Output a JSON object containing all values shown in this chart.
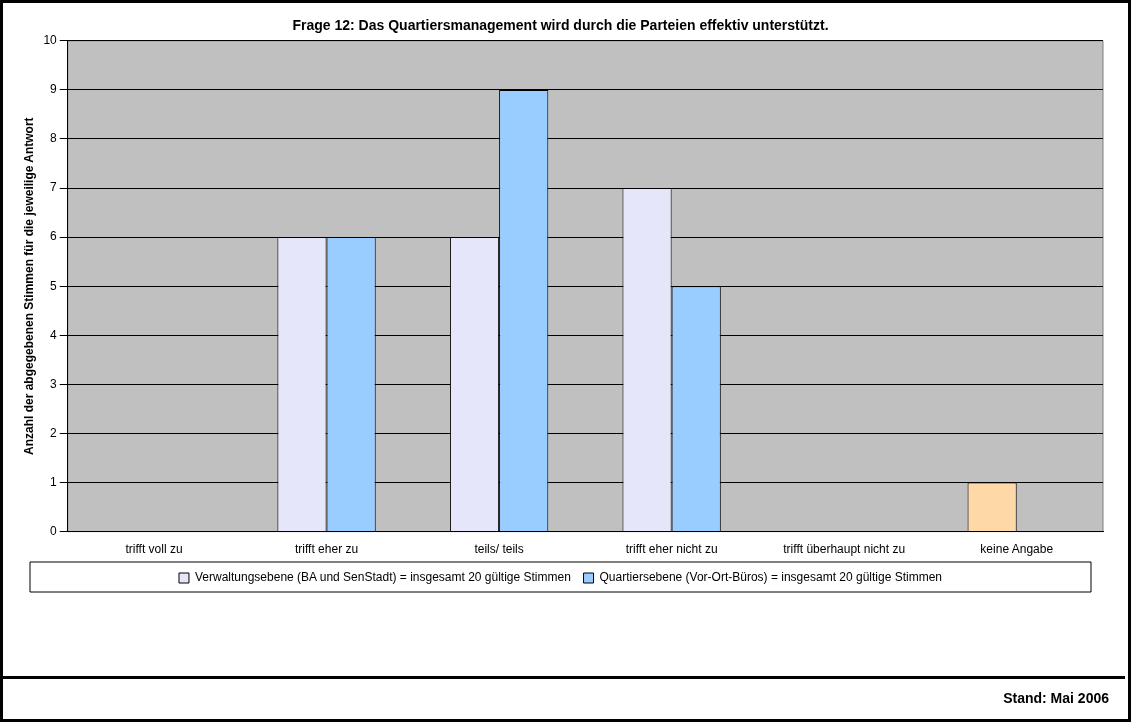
{
  "chart_data": {
    "type": "bar",
    "title": "Frage 12: Das Quartiersmanagement wird durch die Parteien effektiv unterstützt.",
    "ylabel": "Anzahl der abgegebenen Stimmen für die jeweilige Antwort",
    "categories": [
      "trifft voll zu",
      "trifft eher zu",
      "teils/ teils",
      "trifft eher nicht zu",
      "trifft überhaupt nicht zu",
      "keine Angabe"
    ],
    "series": [
      {
        "name": "Verwaltungsebene (BA und SenStadt) = insgesamt 20 gültige Stimmen",
        "color": "#e6e6fa",
        "colors": [
          "#e6e6fa",
          "#e6e6fa",
          "#e6e6fa",
          "#e6e6fa",
          "#e6e6fa",
          "#ffd8a8"
        ],
        "values": [
          0,
          6,
          6,
          7,
          0,
          1
        ]
      },
      {
        "name": "Quartiersebene (Vor-Ort-Büros) = insgesamt 20 gültige Stimmen",
        "color": "#99ccff",
        "values": [
          0,
          6,
          9,
          5,
          0,
          0
        ]
      }
    ],
    "ylim": [
      0,
      10
    ],
    "yticks": [
      0,
      1,
      2,
      3,
      4,
      5,
      6,
      7,
      8,
      9,
      10
    ],
    "grid": "y",
    "legend": "bottom",
    "annotations": [
      "Stand: Mai 2006"
    ]
  }
}
